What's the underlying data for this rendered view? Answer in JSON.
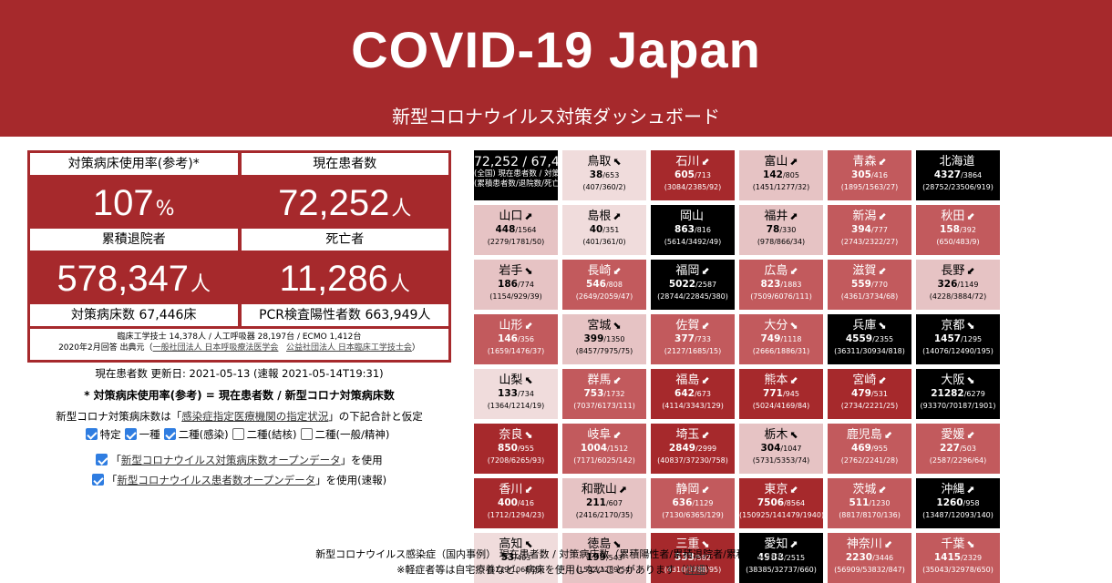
{
  "header": {
    "title": "COVID-19 Japan",
    "subtitle": "新型コロナウイルス対策ダッシュボード"
  },
  "summary": {
    "bed_rate_label": "対策病床使用率(参考)*",
    "bed_rate_value": "107",
    "bed_rate_unit": "%",
    "current_label": "現在患者数",
    "current_value": "72,252",
    "person_unit": "人",
    "discharged_label": "累積退院者",
    "discharged_value": "578,347",
    "deaths_label": "死亡者",
    "deaths_value": "11,286",
    "beds_total": "対策病床数 67,446床",
    "pcr_positive": "PCR検査陽性者数 663,949人",
    "notes_line1": "臨床工学技士 14,378人 / 人工呼吸器 28,197台 / ECMO 1,412台",
    "notes_line2_prefix": "2020年2月回答 出典元（",
    "notes_link1": "一般社団法人 日本呼吸療法医学会",
    "notes_link2": "公益社団法人 日本臨床工学技士会",
    "notes_line2_suffix": "）"
  },
  "info": {
    "updated": "現在患者数 更新日: 2021-05-13 (速報 2021-05-14T19:31)",
    "formula": "* 対策病床使用率(参考) = 現在患者数 / 新型コロナ対策病床数",
    "bed_note_prefix": "新型コロナ対策病床数は「",
    "bed_note_link": "感染症指定医療機関の指定状況",
    "bed_note_suffix": "」の下記合計と仮定",
    "options": [
      {
        "label": "特定",
        "checked": true
      },
      {
        "label": "一種",
        "checked": true
      },
      {
        "label": "二種(感染)",
        "checked": true
      },
      {
        "label": "二種(結核)",
        "checked": false
      },
      {
        "label": "二種(一般/精神)",
        "checked": false
      }
    ],
    "use1_prefix": "「",
    "use1_link": "新型コロナウイルス対策病床数オープンデータ",
    "use1_suffix": "」を使用",
    "use2_prefix": "「",
    "use2_link": "新型コロナウイルス患者数オープンデータ",
    "use2_suffix": "」を使用(速報)"
  },
  "national_cell": {
    "title": "72,252 / 67,446",
    "line1": "(全国) 現在患者数 / 対策病床数*",
    "line2": "(累積患者数/退院数/死亡者数)"
  },
  "prefectures": [
    {
      "name": "鳥取",
      "arrow": "⬉",
      "current": "38",
      "beds": "/653",
      "cum": "(407/360/2)",
      "level": "pale"
    },
    {
      "name": "石川",
      "arrow": "⬋",
      "current": "605",
      "beds": "/713",
      "cum": "(3084/2385/92)",
      "level": "dark"
    },
    {
      "name": "富山",
      "arrow": "⬈",
      "current": "142",
      "beds": "/805",
      "cum": "(1451/1277/32)",
      "level": "light"
    },
    {
      "name": "青森",
      "arrow": "⬋",
      "current": "305",
      "beds": "/416",
      "cum": "(1895/1563/27)",
      "level": "mid"
    },
    {
      "name": "北海道",
      "arrow": "",
      "current": "4327",
      "beds": "/3864",
      "cum": "(28752/23506/919)",
      "level": "black"
    },
    {
      "name": "山口",
      "arrow": "⬈",
      "current": "448",
      "beds": "/1564",
      "cum": "(2279/1781/50)",
      "level": "light"
    },
    {
      "name": "島根",
      "arrow": "⬈",
      "current": "40",
      "beds": "/351",
      "cum": "(401/361/0)",
      "level": "pale"
    },
    {
      "name": "岡山",
      "arrow": "",
      "current": "863",
      "beds": "/816",
      "cum": "(5614/3492/49)",
      "level": "black"
    },
    {
      "name": "福井",
      "arrow": "⬈",
      "current": "78",
      "beds": "/330",
      "cum": "(978/866/34)",
      "level": "light"
    },
    {
      "name": "新潟",
      "arrow": "⬋",
      "current": "394",
      "beds": "/777",
      "cum": "(2743/2322/27)",
      "level": "mid"
    },
    {
      "name": "秋田",
      "arrow": "⬋",
      "current": "158",
      "beds": "/392",
      "cum": "(650/483/9)",
      "level": "mid"
    },
    {
      "name": "岩手",
      "arrow": "⬊",
      "current": "186",
      "beds": "/774",
      "cum": "(1154/929/39)",
      "level": "light"
    },
    {
      "name": "長崎",
      "arrow": "⬋",
      "current": "546",
      "beds": "/808",
      "cum": "(2649/2059/47)",
      "level": "mid"
    },
    {
      "name": "福岡",
      "arrow": "⬋",
      "current": "5022",
      "beds": "/2587",
      "cum": "(28744/22845/380)",
      "level": "black"
    },
    {
      "name": "広島",
      "arrow": "⬋",
      "current": "823",
      "beds": "/1883",
      "cum": "(7509/6076/111)",
      "level": "mid"
    },
    {
      "name": "滋賀",
      "arrow": "⬋",
      "current": "559",
      "beds": "/770",
      "cum": "(4361/3734/68)",
      "level": "mid"
    },
    {
      "name": "長野",
      "arrow": "⬋",
      "current": "326",
      "beds": "/1149",
      "cum": "(4228/3884/72)",
      "level": "light"
    },
    {
      "name": "山形",
      "arrow": "⬋",
      "current": "146",
      "beds": "/356",
      "cum": "(1659/1476/37)",
      "level": "mid"
    },
    {
      "name": "宮城",
      "arrow": "⬊",
      "current": "399",
      "beds": "/1350",
      "cum": "(8457/7975/75)",
      "level": "light"
    },
    {
      "name": "佐賀",
      "arrow": "⬋",
      "current": "377",
      "beds": "/733",
      "cum": "(2127/1685/15)",
      "level": "mid"
    },
    {
      "name": "大分",
      "arrow": "⬊",
      "current": "749",
      "beds": "/1118",
      "cum": "(2666/1886/31)",
      "level": "mid"
    },
    {
      "name": "兵庫",
      "arrow": "⬊",
      "current": "4559",
      "beds": "/2355",
      "cum": "(36311/30934/818)",
      "level": "black"
    },
    {
      "name": "京都",
      "arrow": "⬊",
      "current": "1457",
      "beds": "/1295",
      "cum": "(14076/12490/195)",
      "level": "black"
    },
    {
      "name": "山梨",
      "arrow": "⬉",
      "current": "133",
      "beds": "/734",
      "cum": "(1364/1214/19)",
      "level": "pale"
    },
    {
      "name": "群馬",
      "arrow": "⬋",
      "current": "753",
      "beds": "/1732",
      "cum": "(7037/6173/111)",
      "level": "mid"
    },
    {
      "name": "福島",
      "arrow": "⬋",
      "current": "642",
      "beds": "/673",
      "cum": "(4114/3343/129)",
      "level": "dark"
    },
    {
      "name": "熊本",
      "arrow": "⬋",
      "current": "771",
      "beds": "/945",
      "cum": "(5024/4169/84)",
      "level": "dark"
    },
    {
      "name": "宮崎",
      "arrow": "⬋",
      "current": "479",
      "beds": "/531",
      "cum": "(2734/2221/25)",
      "level": "dark"
    },
    {
      "name": "大阪",
      "arrow": "⬊",
      "current": "21282",
      "beds": "/6279",
      "cum": "(93370/70187/1901)",
      "level": "black"
    },
    {
      "name": "奈良",
      "arrow": "⬊",
      "current": "850",
      "beds": "/955",
      "cum": "(7208/6265/93)",
      "level": "dark"
    },
    {
      "name": "岐阜",
      "arrow": "⬋",
      "current": "1004",
      "beds": "/1512",
      "cum": "(7171/6025/142)",
      "level": "mid"
    },
    {
      "name": "埼玉",
      "arrow": "⬋",
      "current": "2849",
      "beds": "/2999",
      "cum": "(40837/37230/758)",
      "level": "dark"
    },
    {
      "name": "栃木",
      "arrow": "⬉",
      "current": "304",
      "beds": "/1047",
      "cum": "(5731/5353/74)",
      "level": "light"
    },
    {
      "name": "鹿児島",
      "arrow": "⬋",
      "current": "469",
      "beds": "/955",
      "cum": "(2762/2241/28)",
      "level": "mid"
    },
    {
      "name": "愛媛",
      "arrow": "⬋",
      "current": "227",
      "beds": "/503",
      "cum": "(2587/2296/64)",
      "level": "mid"
    },
    {
      "name": "香川",
      "arrow": "⬋",
      "current": "400",
      "beds": "/416",
      "cum": "(1712/1294/23)",
      "level": "dark"
    },
    {
      "name": "和歌山",
      "arrow": "⬈",
      "current": "211",
      "beds": "/607",
      "cum": "(2416/2170/35)",
      "level": "light"
    },
    {
      "name": "静岡",
      "arrow": "⬋",
      "current": "636",
      "beds": "/1129",
      "cum": "(7130/6365/129)",
      "level": "mid"
    },
    {
      "name": "東京",
      "arrow": "⬋",
      "current": "7506",
      "beds": "/8564",
      "cum": "(150925/141479/1940)",
      "level": "dark"
    },
    {
      "name": "茨城",
      "arrow": "⬋",
      "current": "511",
      "beds": "/1230",
      "cum": "(8817/8170/136)",
      "level": "mid"
    },
    {
      "name": "沖縄",
      "arrow": "⬈",
      "current": "1260",
      "beds": "/958",
      "cum": "(13487/12093/140)",
      "level": "black"
    },
    {
      "name": "高知",
      "arrow": "⬉",
      "current": "53",
      "beds": "/403",
      "cum": "(1139/1066/20)",
      "level": "pale"
    },
    {
      "name": "徳島",
      "arrow": "⬊",
      "current": "199",
      "beds": "/543",
      "cum": "(1542/1289/54)",
      "level": "light"
    },
    {
      "name": "三重",
      "arrow": "⬊",
      "current": "533",
      "beds": "/582",
      "cum": "(4310/3788/95)",
      "level": "dark"
    },
    {
      "name": "愛知",
      "arrow": "⬈",
      "current": "4988",
      "beds": "/2515",
      "cum": "(38385/32737/660)",
      "level": "black"
    },
    {
      "name": "神奈川",
      "arrow": "⬋",
      "current": "2230",
      "beds": "/3446",
      "cum": "(56909/53832/847)",
      "level": "mid"
    },
    {
      "name": "千葉",
      "arrow": "⬊",
      "current": "1415",
      "beds": "/2329",
      "cum": "(35043/32978/650)",
      "level": "mid"
    }
  ],
  "colors": {
    "brand_red": "#a6292c",
    "level_black": "#000000",
    "level_dark": "#a6292c",
    "level_mid": "#c25a5d",
    "level_light": "#e6c3c4",
    "level_pale": "#f0dcdc",
    "checkbox_blue": "#2f7de1"
  },
  "footer": {
    "line1": "新型コロナウイルス感染症（国内事例） 現在患者数 / 対策病床数（累積陽性者/累積退院者/累積死亡者数）",
    "line2_prefix": "※軽症者等は自宅療養など、病床を使用しないことがあります（",
    "line2_link": "詳細",
    "line2_suffix": "）"
  }
}
